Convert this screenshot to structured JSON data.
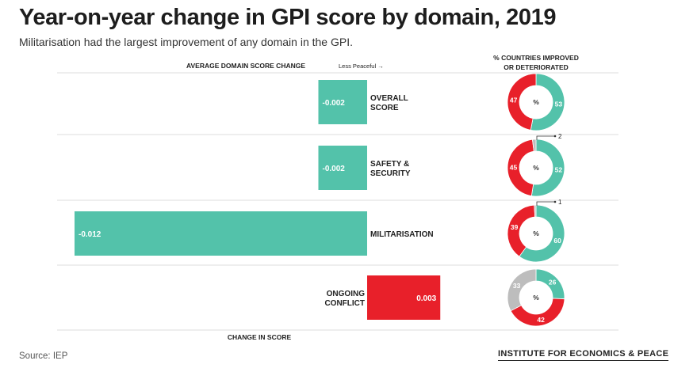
{
  "title": "Year-on-year change in GPI score by domain, 2019",
  "subtitle": "Militarisation had the largest improvement of any domain in the GPI.",
  "source": "Source: IEP",
  "brand": "INSTITUTE FOR ECONOMICS & PEACE",
  "colors": {
    "teal": "#53c2aa",
    "red": "#e8202a",
    "grey": "#bdbdbd",
    "grid": "#dddddd"
  },
  "chart_data": {
    "type": "bar",
    "bar_header": "AVERAGE DOMAIN SCORE CHANGE",
    "direction_label": "Less Peaceful",
    "direction_arrow": "→",
    "xlabel": "CHANGE IN SCORE",
    "xlim": [
      -0.0125,
      0.0035
    ],
    "donut_header": [
      "% COUNTRIES IMPROVED",
      "OR DETERIORATED"
    ],
    "donut_center_label": "%",
    "categories": [
      [
        "OVERALL",
        "SCORE"
      ],
      [
        "SAFETY &",
        "SECURITY"
      ],
      [
        "MILITARISATION"
      ],
      [
        "ONGOING",
        "CONFLICT"
      ]
    ],
    "values": [
      -0.002,
      -0.002,
      -0.012,
      0.003
    ],
    "value_labels": [
      "-0.002",
      "-0.002",
      "-0.012",
      "0.003"
    ],
    "donuts": [
      {
        "improved": 53,
        "deteriorated": 47,
        "no_change": 0,
        "callout": ""
      },
      {
        "improved": 52,
        "deteriorated": 45,
        "no_change": 2,
        "callout": "2"
      },
      {
        "improved": 60,
        "deteriorated": 39,
        "no_change": 1,
        "callout": "1"
      },
      {
        "improved": 26,
        "deteriorated": 42,
        "no_change": 33,
        "callout": ""
      }
    ]
  }
}
